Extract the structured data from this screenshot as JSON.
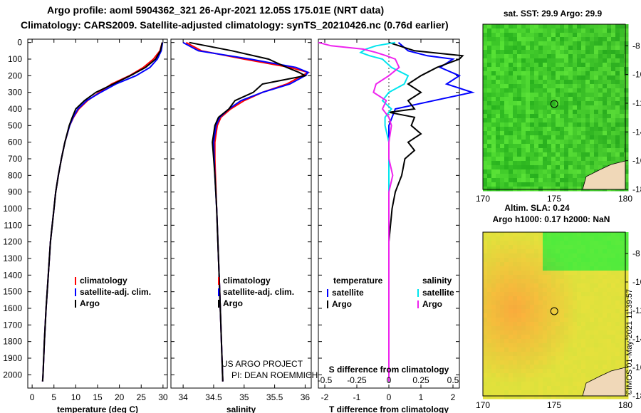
{
  "title_line1": "Argo profile: aoml 5904362_321 26-Apr-2021 12.05S 175.01E (NRT data)",
  "title_line2": "Climatology: CARS2009. Satellite-adjusted climatology: synTS_20210426.nc (0.76d earlier)",
  "depth_ticks": [
    "0",
    "100",
    "200",
    "300",
    "400",
    "500",
    "600",
    "700",
    "800",
    "900",
    "1000",
    "1100",
    "1200",
    "1300",
    "1400",
    "1500",
    "1600",
    "1700",
    "1800",
    "1900",
    "2000"
  ],
  "colors": {
    "climatology": "#ff0000",
    "satellite": "#0000ff",
    "argo": "#000000",
    "sal_sat": "#00e5ee",
    "sal_argo": "#ee22ee",
    "map_green": "#3cc83c",
    "map_yellow": "#e6e63c"
  },
  "chart_data": [
    {
      "type": "line",
      "name": "temperature",
      "xlabel": "temperature (deg C)",
      "ylabel": "depth",
      "xlim": [
        -1,
        31
      ],
      "ylim": [
        2080,
        -20
      ],
      "ticks": [
        0,
        5,
        10,
        15,
        20,
        25,
        30
      ],
      "tick_labels": [
        "0",
        "5",
        "10",
        "15",
        "20",
        "25",
        "30"
      ],
      "legend": [
        "climatology",
        "satellite-adj. clim.",
        "Argo"
      ],
      "series": [
        {
          "name": "climatology",
          "color": "#ff0000",
          "depth": [
            0,
            50,
            100,
            150,
            200,
            250,
            300,
            350,
            400,
            450,
            500,
            600,
            700,
            800,
            900,
            1000,
            1200,
            1400,
            1600,
            1800,
            2000,
            2040
          ],
          "values": [
            29.8,
            29.3,
            27.8,
            25.5,
            22.3,
            18.2,
            15.4,
            12.7,
            10.7,
            9.5,
            8.6,
            7.5,
            6.7,
            6.0,
            5.4,
            5.0,
            4.2,
            3.7,
            3.2,
            2.8,
            2.5,
            2.4
          ]
        },
        {
          "name": "satellite-adj. clim.",
          "color": "#0000ff",
          "depth": [
            0,
            50,
            100,
            150,
            200,
            250,
            300,
            350,
            400,
            450,
            500,
            600,
            700,
            800,
            900,
            1000,
            1200,
            1400,
            1600,
            1800,
            2000,
            2040
          ],
          "values": [
            29.9,
            29.6,
            28.7,
            27.0,
            23.8,
            19.2,
            15.7,
            12.5,
            10.5,
            9.4,
            8.6,
            7.5,
            6.7,
            6.0,
            5.4,
            5.0,
            4.2,
            3.7,
            3.2,
            2.8,
            2.5,
            2.4
          ]
        },
        {
          "name": "Argo",
          "color": "#000000",
          "depth": [
            0,
            50,
            100,
            150,
            200,
            250,
            300,
            350,
            400,
            450,
            500,
            600,
            700,
            800,
            900,
            1000,
            1200,
            1400,
            1600,
            1800,
            2000,
            2040
          ],
          "values": [
            29.8,
            29.4,
            28.3,
            26.0,
            22.5,
            18.6,
            14.6,
            12.0,
            10.0,
            9.2,
            8.5,
            7.5,
            6.7,
            6.0,
            5.4,
            5.0,
            4.2,
            3.7,
            3.2,
            2.8,
            2.5,
            2.4
          ]
        }
      ]
    },
    {
      "type": "line",
      "name": "salinity",
      "xlabel": "salinity",
      "ylabel": "depth",
      "xlim": [
        33.8,
        36.1
      ],
      "ylim": [
        2080,
        -20
      ],
      "ticks": [
        34,
        34.5,
        35,
        35.5,
        36
      ],
      "tick_labels": [
        "34",
        "34.5",
        "35",
        "35.5",
        "36"
      ],
      "legend": [
        "climatology",
        "satellite-adj. clim.",
        "Argo"
      ],
      "annotations": [
        "US ARGO PROJECT",
        "PI: DEAN ROEMMICH"
      ],
      "series": [
        {
          "name": "climatology",
          "color": "#ff0000",
          "depth": [
            0,
            50,
            100,
            150,
            180,
            200,
            250,
            300,
            350,
            400,
            450,
            500,
            600,
            700,
            800,
            1000,
            1500,
            2040
          ],
          "values": [
            34.05,
            34.3,
            35.0,
            35.75,
            36.05,
            35.95,
            35.7,
            35.3,
            35.0,
            34.78,
            34.62,
            34.56,
            34.52,
            34.52,
            34.53,
            34.55,
            34.6,
            34.65
          ]
        },
        {
          "name": "satellite-adj. clim.",
          "color": "#0000ff",
          "depth": [
            0,
            50,
            100,
            150,
            180,
            200,
            250,
            300,
            350,
            400,
            450,
            500,
            600,
            700,
            800,
            1000,
            1500,
            2040
          ],
          "values": [
            34.0,
            34.25,
            35.1,
            35.85,
            36.05,
            36.0,
            35.75,
            35.3,
            34.95,
            34.75,
            34.6,
            34.54,
            34.5,
            34.51,
            34.52,
            34.55,
            34.6,
            34.65
          ]
        },
        {
          "name": "Argo",
          "color": "#000000",
          "depth": [
            0,
            50,
            100,
            150,
            180,
            200,
            250,
            300,
            350,
            400,
            450,
            500,
            600,
            700,
            800,
            1000,
            1500,
            2040
          ],
          "values": [
            34.1,
            34.8,
            35.4,
            35.7,
            35.9,
            36.0,
            35.3,
            35.15,
            34.85,
            34.75,
            34.58,
            34.52,
            34.48,
            34.5,
            34.52,
            34.55,
            34.6,
            34.65
          ]
        }
      ]
    },
    {
      "type": "line",
      "name": "differences",
      "xlabel": "T difference from climatology",
      "x2label": "S difference from climatology",
      "xlim": [
        -2.2,
        2.2
      ],
      "ylim": [
        2080,
        -20
      ],
      "ticks": [
        -2,
        -1,
        0,
        1,
        2
      ],
      "tick_labels": [
        "-2",
        "-1",
        "0",
        "1",
        "2"
      ],
      "s_ticks": [
        -0.5,
        -0.25,
        0,
        0.25,
        0.5
      ],
      "s_tick_labels": [
        "-0.5",
        "-0.25",
        "0",
        "0.25",
        "0.5"
      ],
      "legend_temperature": {
        "heading": "temperature",
        "items": [
          "satellite",
          "Argo"
        ]
      },
      "legend_salinity": {
        "heading": "salinity",
        "items": [
          "satellite",
          "Argo"
        ]
      },
      "series": [
        {
          "name": "T satellite",
          "color": "#0000ff",
          "depth": [
            0,
            50,
            80,
            100,
            150,
            200,
            250,
            300,
            350,
            400,
            450,
            500,
            600,
            800,
            1000,
            1500,
            2040
          ],
          "values": [
            0.3,
            0.6,
            1.2,
            2.0,
            1.6,
            2.2,
            1.8,
            2.6,
            1.4,
            0.2,
            0.1,
            0.0,
            0.0,
            0.0,
            0.0,
            0.0,
            0.0
          ]
        },
        {
          "name": "T Argo",
          "color": "#000000",
          "depth": [
            0,
            50,
            80,
            100,
            150,
            200,
            250,
            300,
            350,
            400,
            420,
            450,
            500,
            550,
            600,
            650,
            700,
            800,
            900,
            1000,
            1200,
            1500,
            2040
          ],
          "values": [
            0.0,
            0.8,
            2.3,
            2.2,
            1.5,
            1.0,
            0.6,
            1.0,
            0.6,
            0.8,
            0.0,
            0.8,
            0.7,
            1.0,
            0.6,
            0.8,
            0.5,
            0.4,
            0.2,
            0.1,
            0.0,
            0.0,
            0.0
          ]
        },
        {
          "name": "S satellite",
          "color": "#00e5ee",
          "depth": [
            0,
            20,
            40,
            60,
            80,
            100,
            150,
            200,
            250,
            300,
            350,
            400,
            450,
            500,
            600,
            800,
            1000,
            1500,
            2040
          ],
          "values": [
            0.05,
            -0.1,
            -0.18,
            -0.22,
            -0.15,
            -0.05,
            0.02,
            0.15,
            0.12,
            0.0,
            -0.05,
            0.02,
            -0.03,
            -0.03,
            0.0,
            0.0,
            0.0,
            0.0,
            0.0
          ]
        },
        {
          "name": "S Argo",
          "color": "#ee22ee",
          "depth": [
            0,
            20,
            40,
            60,
            80,
            100,
            150,
            200,
            250,
            300,
            350,
            400,
            450,
            500,
            600,
            700,
            800,
            900,
            1000,
            1500,
            2040
          ],
          "values": [
            -0.55,
            -0.45,
            -0.2,
            -0.1,
            -0.02,
            0.05,
            0.08,
            0.0,
            -0.1,
            -0.12,
            -0.02,
            -0.05,
            0.0,
            0.02,
            0.0,
            0.0,
            0.03,
            0.0,
            0.0,
            0.0,
            0.0
          ]
        }
      ]
    },
    {
      "type": "heatmap",
      "name": "sat-sst-map",
      "title": "sat. SST: 29.9 Argo: 29.9",
      "xlim": [
        170,
        180
      ],
      "ylim": [
        -18,
        -6.5
      ],
      "xticks": [
        "170",
        "175",
        "180"
      ],
      "yticks": [
        "-8",
        "-10",
        "-12",
        "-14",
        "-16",
        "-18"
      ],
      "argo_position": {
        "lon": 175.01,
        "lat": -12.05
      }
    },
    {
      "type": "heatmap",
      "name": "altimetry-map",
      "title": "Altim. SLA: 0.24",
      "subtitle": "Argo h1000: 0.17 h2000: NaN",
      "xlim": [
        170,
        180
      ],
      "ylim": [
        -18,
        -6.5
      ],
      "xticks": [
        "170",
        "175",
        "180"
      ],
      "yticks": [
        "-8",
        "-10",
        "-12",
        "-14",
        "-16",
        "-18"
      ],
      "argo_position": {
        "lon": 175.01,
        "lat": -12.05
      }
    }
  ],
  "watermark": "©IMOS 01-May-2021 11:39:57"
}
